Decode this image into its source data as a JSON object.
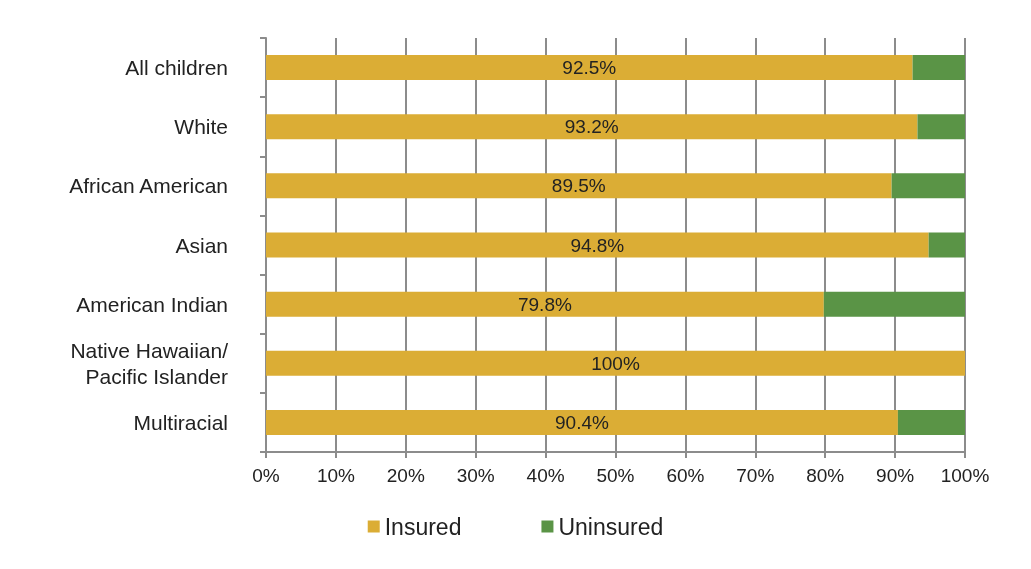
{
  "chart_data": {
    "type": "bar",
    "orientation": "horizontal",
    "stacked": true,
    "categories": [
      "All children",
      "White",
      "African American",
      "Asian",
      "American Indian",
      "Native Hawaiian/\nPacific Islander",
      "Multiracial"
    ],
    "series": [
      {
        "name": "Insured",
        "color": "#dbad35",
        "values": [
          92.5,
          93.2,
          89.5,
          94.8,
          79.8,
          100,
          90.4
        ],
        "value_labels": [
          "92.5%",
          "93.2%",
          "89.5%",
          "94.8%",
          "79.8%",
          "100%",
          "90.4%"
        ]
      },
      {
        "name": "Uninsured",
        "color": "#5a9446",
        "values": [
          7.5,
          6.8,
          10.5,
          5.2,
          20.2,
          0,
          9.6
        ]
      }
    ],
    "xlim": [
      0,
      100
    ],
    "xticks": [
      {
        "value": 0,
        "label": "0%"
      },
      {
        "value": 10,
        "label": "10%"
      },
      {
        "value": 20,
        "label": "20%"
      },
      {
        "value": 30,
        "label": "30%"
      },
      {
        "value": 40,
        "label": "40%"
      },
      {
        "value": 50,
        "label": "50%"
      },
      {
        "value": 60,
        "label": "60%"
      },
      {
        "value": 70,
        "label": "70%"
      },
      {
        "value": 80,
        "label": "80%"
      },
      {
        "value": 90,
        "label": "90%"
      },
      {
        "value": 100,
        "label": "100%"
      }
    ],
    "grid": "x",
    "legend": "bottom"
  }
}
